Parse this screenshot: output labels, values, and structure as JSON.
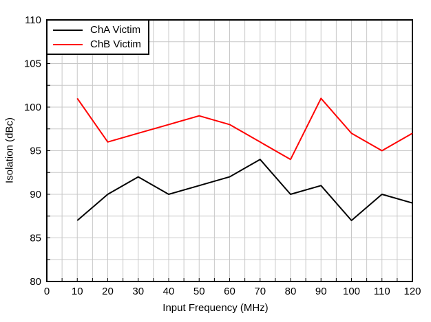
{
  "chart_data": {
    "type": "line",
    "x": [
      10,
      20,
      30,
      40,
      50,
      60,
      70,
      80,
      90,
      100,
      110,
      120
    ],
    "series": [
      {
        "name": "ChA Victim",
        "color": "#000000",
        "values": [
          87,
          90,
          92,
          90,
          91,
          92,
          94,
          90,
          91,
          87,
          90,
          89
        ]
      },
      {
        "name": "ChB Victim",
        "color": "#ff0000",
        "values": [
          101,
          96,
          97,
          98,
          99,
          98,
          96,
          94,
          101,
          97,
          95,
          97
        ]
      }
    ],
    "title": "",
    "xlabel": "Input Frequency (MHz)",
    "ylabel": "Isolation (dBc)",
    "xlim": [
      0,
      120
    ],
    "ylim": [
      80,
      110
    ],
    "xticks": [
      0,
      10,
      20,
      30,
      40,
      50,
      60,
      70,
      80,
      90,
      100,
      110,
      120
    ],
    "yticks": [
      80,
      85,
      90,
      95,
      100,
      105,
      110
    ],
    "x_minor_step": 5,
    "y_minor_step": 2.5,
    "grid": true,
    "grid_color": "#c8c8c8",
    "axis_color": "#000000",
    "text_color": "#000000",
    "legend_position": "top-left"
  }
}
